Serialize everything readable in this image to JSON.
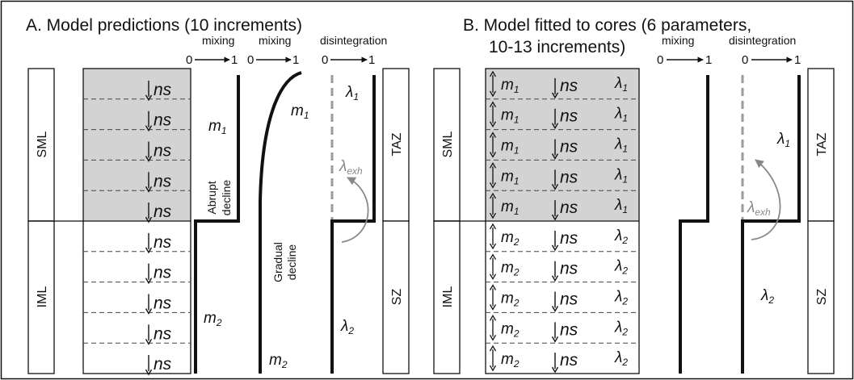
{
  "panel_a": {
    "title": "A. Model predictions (10 increments)",
    "axis_mixing": "mixing",
    "axis_disintegration": "disintegration",
    "axis_zero": "0",
    "axis_one": "1",
    "zone_upper": "SML",
    "zone_lower": "IML",
    "zone_right_upper": "TAZ",
    "zone_right_lower": "SZ",
    "increment_label": "ns",
    "increments": 10,
    "m_symbol": "m",
    "lambda_symbol": "λ",
    "sub_1": "1",
    "sub_2": "2",
    "sub_exh": "exh",
    "abrupt_line1": "Abrupt",
    "abrupt_line2": "decline",
    "gradual_line1": "Gradual",
    "gradual_line2": "decline"
  },
  "panel_b": {
    "title_line1": "B. Model fitted to cores (6 parameters,",
    "title_line2": "10-13 increments)",
    "axis_mixing": "mixing",
    "axis_disintegration": "disintegration",
    "axis_zero": "0",
    "axis_one": "1",
    "zone_upper": "SML",
    "zone_lower": "IML",
    "zone_right_upper": "TAZ",
    "zone_right_lower": "SZ",
    "increment_label": "ns",
    "increments": 10,
    "m_symbol": "m",
    "lambda_symbol": "λ",
    "sub_1": "1",
    "sub_2": "2",
    "sub_exh": "exh"
  },
  "colors": {
    "shade": "#d3d3d3",
    "line": "#111111",
    "dashed_profile": "#9a9a9a",
    "exh_arrow": "#888888"
  }
}
